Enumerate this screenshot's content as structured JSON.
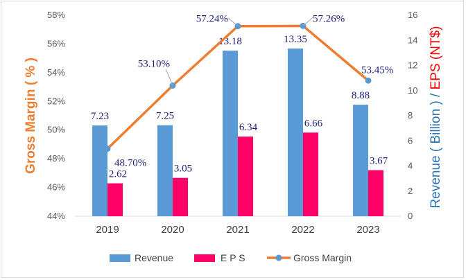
{
  "chart_data": {
    "type": "bar",
    "categories": [
      "2019",
      "2020",
      "2021",
      "2022",
      "2023"
    ],
    "series": [
      {
        "name": "Revenue",
        "kind": "bar",
        "axis": "right",
        "color": "#5b9bd5",
        "values": [
          7.23,
          7.25,
          13.18,
          13.35,
          8.88
        ],
        "labels": [
          "7.23",
          "7.25",
          "13.18",
          "13.35",
          "8.88"
        ]
      },
      {
        "name": "E P S",
        "kind": "bar",
        "axis": "right",
        "color": "#ff0066",
        "values": [
          2.62,
          3.05,
          6.34,
          6.66,
          3.67
        ],
        "labels": [
          "2.62",
          "3.05",
          "6.34",
          "6.66",
          "3.67"
        ]
      },
      {
        "name": "Gross Margin",
        "kind": "line",
        "axis": "left",
        "color": "#ed7d31",
        "marker_color": "#5b9bd5",
        "values": [
          48.7,
          53.1,
          57.24,
          57.26,
          53.45
        ],
        "labels": [
          "48.70%",
          "53.10%",
          "57.24%",
          "57.26%",
          "53.45%"
        ]
      }
    ],
    "left_axis": {
      "title": "Gross Margin ( % )",
      "title_color": "#ed7d31",
      "ylim": [
        44,
        58
      ],
      "ticks": [
        44,
        46,
        48,
        50,
        52,
        54,
        56,
        58
      ],
      "tick_labels": [
        "44%",
        "46%",
        "48%",
        "50%",
        "52%",
        "54%",
        "56%",
        "58%"
      ]
    },
    "right_axis": {
      "title_part1": "Revenue ( Billion ) / ",
      "title_part1_color": "#2e75b6",
      "title_part2": "EPS (NT$)",
      "title_part2_color": "#ff0000",
      "ylim": [
        0,
        16
      ],
      "ticks": [
        0,
        2,
        4,
        6,
        8,
        10,
        12,
        14,
        16
      ],
      "tick_labels": [
        "0",
        "2",
        "4",
        "6",
        "8",
        "10",
        "12",
        "14",
        "16"
      ]
    },
    "legend": {
      "position": "bottom",
      "items": [
        "Revenue",
        "E P S",
        "Gross Margin"
      ]
    },
    "grid": false
  }
}
